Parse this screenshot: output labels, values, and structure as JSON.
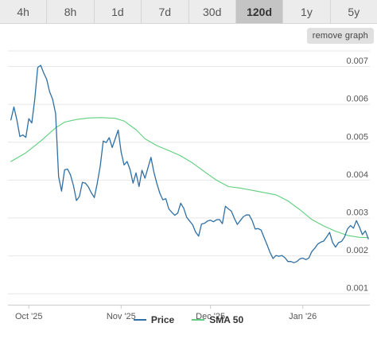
{
  "range_tabs": [
    {
      "label": "4h",
      "active": false
    },
    {
      "label": "8h",
      "active": false
    },
    {
      "label": "1d",
      "active": false
    },
    {
      "label": "7d",
      "active": false
    },
    {
      "label": "30d",
      "active": false
    },
    {
      "label": "120d",
      "active": true
    },
    {
      "label": "1y",
      "active": false
    },
    {
      "label": "5y",
      "active": false
    }
  ],
  "remove_graph_label": "remove graph",
  "colors": {
    "price": "#2f6fa3",
    "sma": "#5fcf7e",
    "grid": "#e6e6e6"
  },
  "chart_data": {
    "type": "line",
    "x_tick_labels": [
      "Oct '25",
      "Nov '25",
      "Dec '25",
      "Jan '26"
    ],
    "y_tick_labels": [
      "0.001",
      "0.002",
      "0.003",
      "0.004",
      "0.005",
      "0.006",
      "0.007"
    ],
    "ylim": [
      0.0007,
      0.0074
    ],
    "grid": true,
    "legend_position": "bottom",
    "series": [
      {
        "name": "Price",
        "x": [
          "2025-09-25",
          "2025-09-26",
          "2025-09-27",
          "2025-09-28",
          "2025-09-29",
          "2025-09-30",
          "2025-10-01",
          "2025-10-02",
          "2025-10-03",
          "2025-10-04",
          "2025-10-05",
          "2025-10-06",
          "2025-10-07",
          "2025-10-08",
          "2025-10-09",
          "2025-10-10",
          "2025-10-11",
          "2025-10-12",
          "2025-10-13",
          "2025-10-14",
          "2025-10-15",
          "2025-10-16",
          "2025-10-17",
          "2025-10-18",
          "2025-10-19",
          "2025-10-20",
          "2025-10-21",
          "2025-10-22",
          "2025-10-23",
          "2025-10-24",
          "2025-10-25",
          "2025-10-26",
          "2025-10-27",
          "2025-10-28",
          "2025-10-29",
          "2025-10-30",
          "2025-10-31",
          "2025-11-01",
          "2025-11-02",
          "2025-11-03",
          "2025-11-04",
          "2025-11-05",
          "2025-11-06",
          "2025-11-07",
          "2025-11-08",
          "2025-11-09",
          "2025-11-10",
          "2025-11-11",
          "2025-11-12",
          "2025-11-13",
          "2025-11-14",
          "2025-11-15",
          "2025-11-16",
          "2025-11-17",
          "2025-11-18",
          "2025-11-19",
          "2025-11-20",
          "2025-11-21",
          "2025-11-22",
          "2025-11-23",
          "2025-11-24",
          "2025-11-25",
          "2025-11-26",
          "2025-11-27",
          "2025-11-28",
          "2025-11-29",
          "2025-11-30",
          "2025-12-01",
          "2025-12-02",
          "2025-12-03",
          "2025-12-04",
          "2025-12-05",
          "2025-12-06",
          "2025-12-07",
          "2025-12-08",
          "2025-12-09",
          "2025-12-10",
          "2025-12-11",
          "2025-12-12",
          "2025-12-13",
          "2025-12-14",
          "2025-12-15",
          "2025-12-16",
          "2025-12-17",
          "2025-12-18",
          "2025-12-19",
          "2025-12-20",
          "2025-12-21",
          "2025-12-22",
          "2025-12-23",
          "2025-12-24",
          "2025-12-25",
          "2025-12-26",
          "2025-12-27",
          "2025-12-28",
          "2025-12-29",
          "2025-12-30",
          "2025-12-31",
          "2026-01-01",
          "2026-01-02",
          "2026-01-03",
          "2026-01-04",
          "2026-01-05",
          "2026-01-06",
          "2026-01-07",
          "2026-01-08",
          "2026-01-09",
          "2026-01-10",
          "2026-01-11",
          "2026-01-12",
          "2026-01-13",
          "2026-01-14",
          "2026-01-15",
          "2026-01-16",
          "2026-01-17",
          "2026-01-18",
          "2026-01-19",
          "2026-01-20",
          "2026-01-21",
          "2026-01-22",
          "2026-01-23"
        ],
        "values": [
          0.00558,
          0.00592,
          0.00558,
          0.00514,
          0.00518,
          0.00512,
          0.00561,
          0.0055,
          0.00612,
          0.00696,
          0.00702,
          0.00682,
          0.00665,
          0.00632,
          0.00612,
          0.00575,
          0.00408,
          0.0037,
          0.00426,
          0.00428,
          0.00413,
          0.00384,
          0.00345,
          0.00356,
          0.00393,
          0.00391,
          0.00381,
          0.00365,
          0.00353,
          0.00391,
          0.00437,
          0.00502,
          0.00498,
          0.00511,
          0.00485,
          0.00508,
          0.00531,
          0.00473,
          0.00439,
          0.00448,
          0.00427,
          0.00391,
          0.00418,
          0.00382,
          0.00425,
          0.00404,
          0.00431,
          0.00459,
          0.0042,
          0.0039,
          0.00364,
          0.00347,
          0.0035,
          0.00323,
          0.00314,
          0.00306,
          0.00312,
          0.00338,
          0.00325,
          0.00301,
          0.00291,
          0.00281,
          0.00262,
          0.00251,
          0.00283,
          0.00285,
          0.00291,
          0.00293,
          0.00289,
          0.00294,
          0.00295,
          0.00284,
          0.0033,
          0.00323,
          0.00317,
          0.00298,
          0.00282,
          0.00292,
          0.00302,
          0.00307,
          0.00307,
          0.00292,
          0.0027,
          0.00271,
          0.00267,
          0.00247,
          0.00228,
          0.00208,
          0.00192,
          0.002,
          0.00198,
          0.002,
          0.00194,
          0.00184,
          0.00184,
          0.00181,
          0.00184,
          0.00191,
          0.00193,
          0.00189,
          0.00193,
          0.0021,
          0.00219,
          0.0023,
          0.00235,
          0.00238,
          0.00249,
          0.00261,
          0.00234,
          0.00222,
          0.00234,
          0.00237,
          0.00249,
          0.0027,
          0.00279,
          0.00272,
          0.00292,
          0.00275,
          0.00255,
          0.00265,
          0.00244
        ]
      },
      {
        "name": "SMA 50",
        "x": [
          "2025-09-25",
          "2025-09-30",
          "2025-10-05",
          "2025-10-10",
          "2025-10-13",
          "2025-10-17",
          "2025-10-21",
          "2025-10-25",
          "2025-10-30",
          "2025-11-02",
          "2025-11-06",
          "2025-11-09",
          "2025-11-13",
          "2025-11-17",
          "2025-11-21",
          "2025-11-25",
          "2025-11-29",
          "2025-12-03",
          "2025-12-07",
          "2025-12-11",
          "2025-12-15",
          "2025-12-19",
          "2025-12-23",
          "2025-12-27",
          "2025-12-31",
          "2026-01-04",
          "2026-01-08",
          "2026-01-12",
          "2026-01-16",
          "2026-01-20",
          "2026-01-23"
        ],
        "values": [
          0.00448,
          0.00471,
          0.00502,
          0.00537,
          0.00552,
          0.00559,
          0.00563,
          0.00564,
          0.00562,
          0.00555,
          0.00532,
          0.00508,
          0.0049,
          0.00477,
          0.00463,
          0.00444,
          0.00421,
          0.00399,
          0.00382,
          0.00378,
          0.00372,
          0.00366,
          0.0036,
          0.00344,
          0.00321,
          0.00295,
          0.00278,
          0.00264,
          0.00253,
          0.00248,
          0.00247
        ]
      }
    ]
  }
}
